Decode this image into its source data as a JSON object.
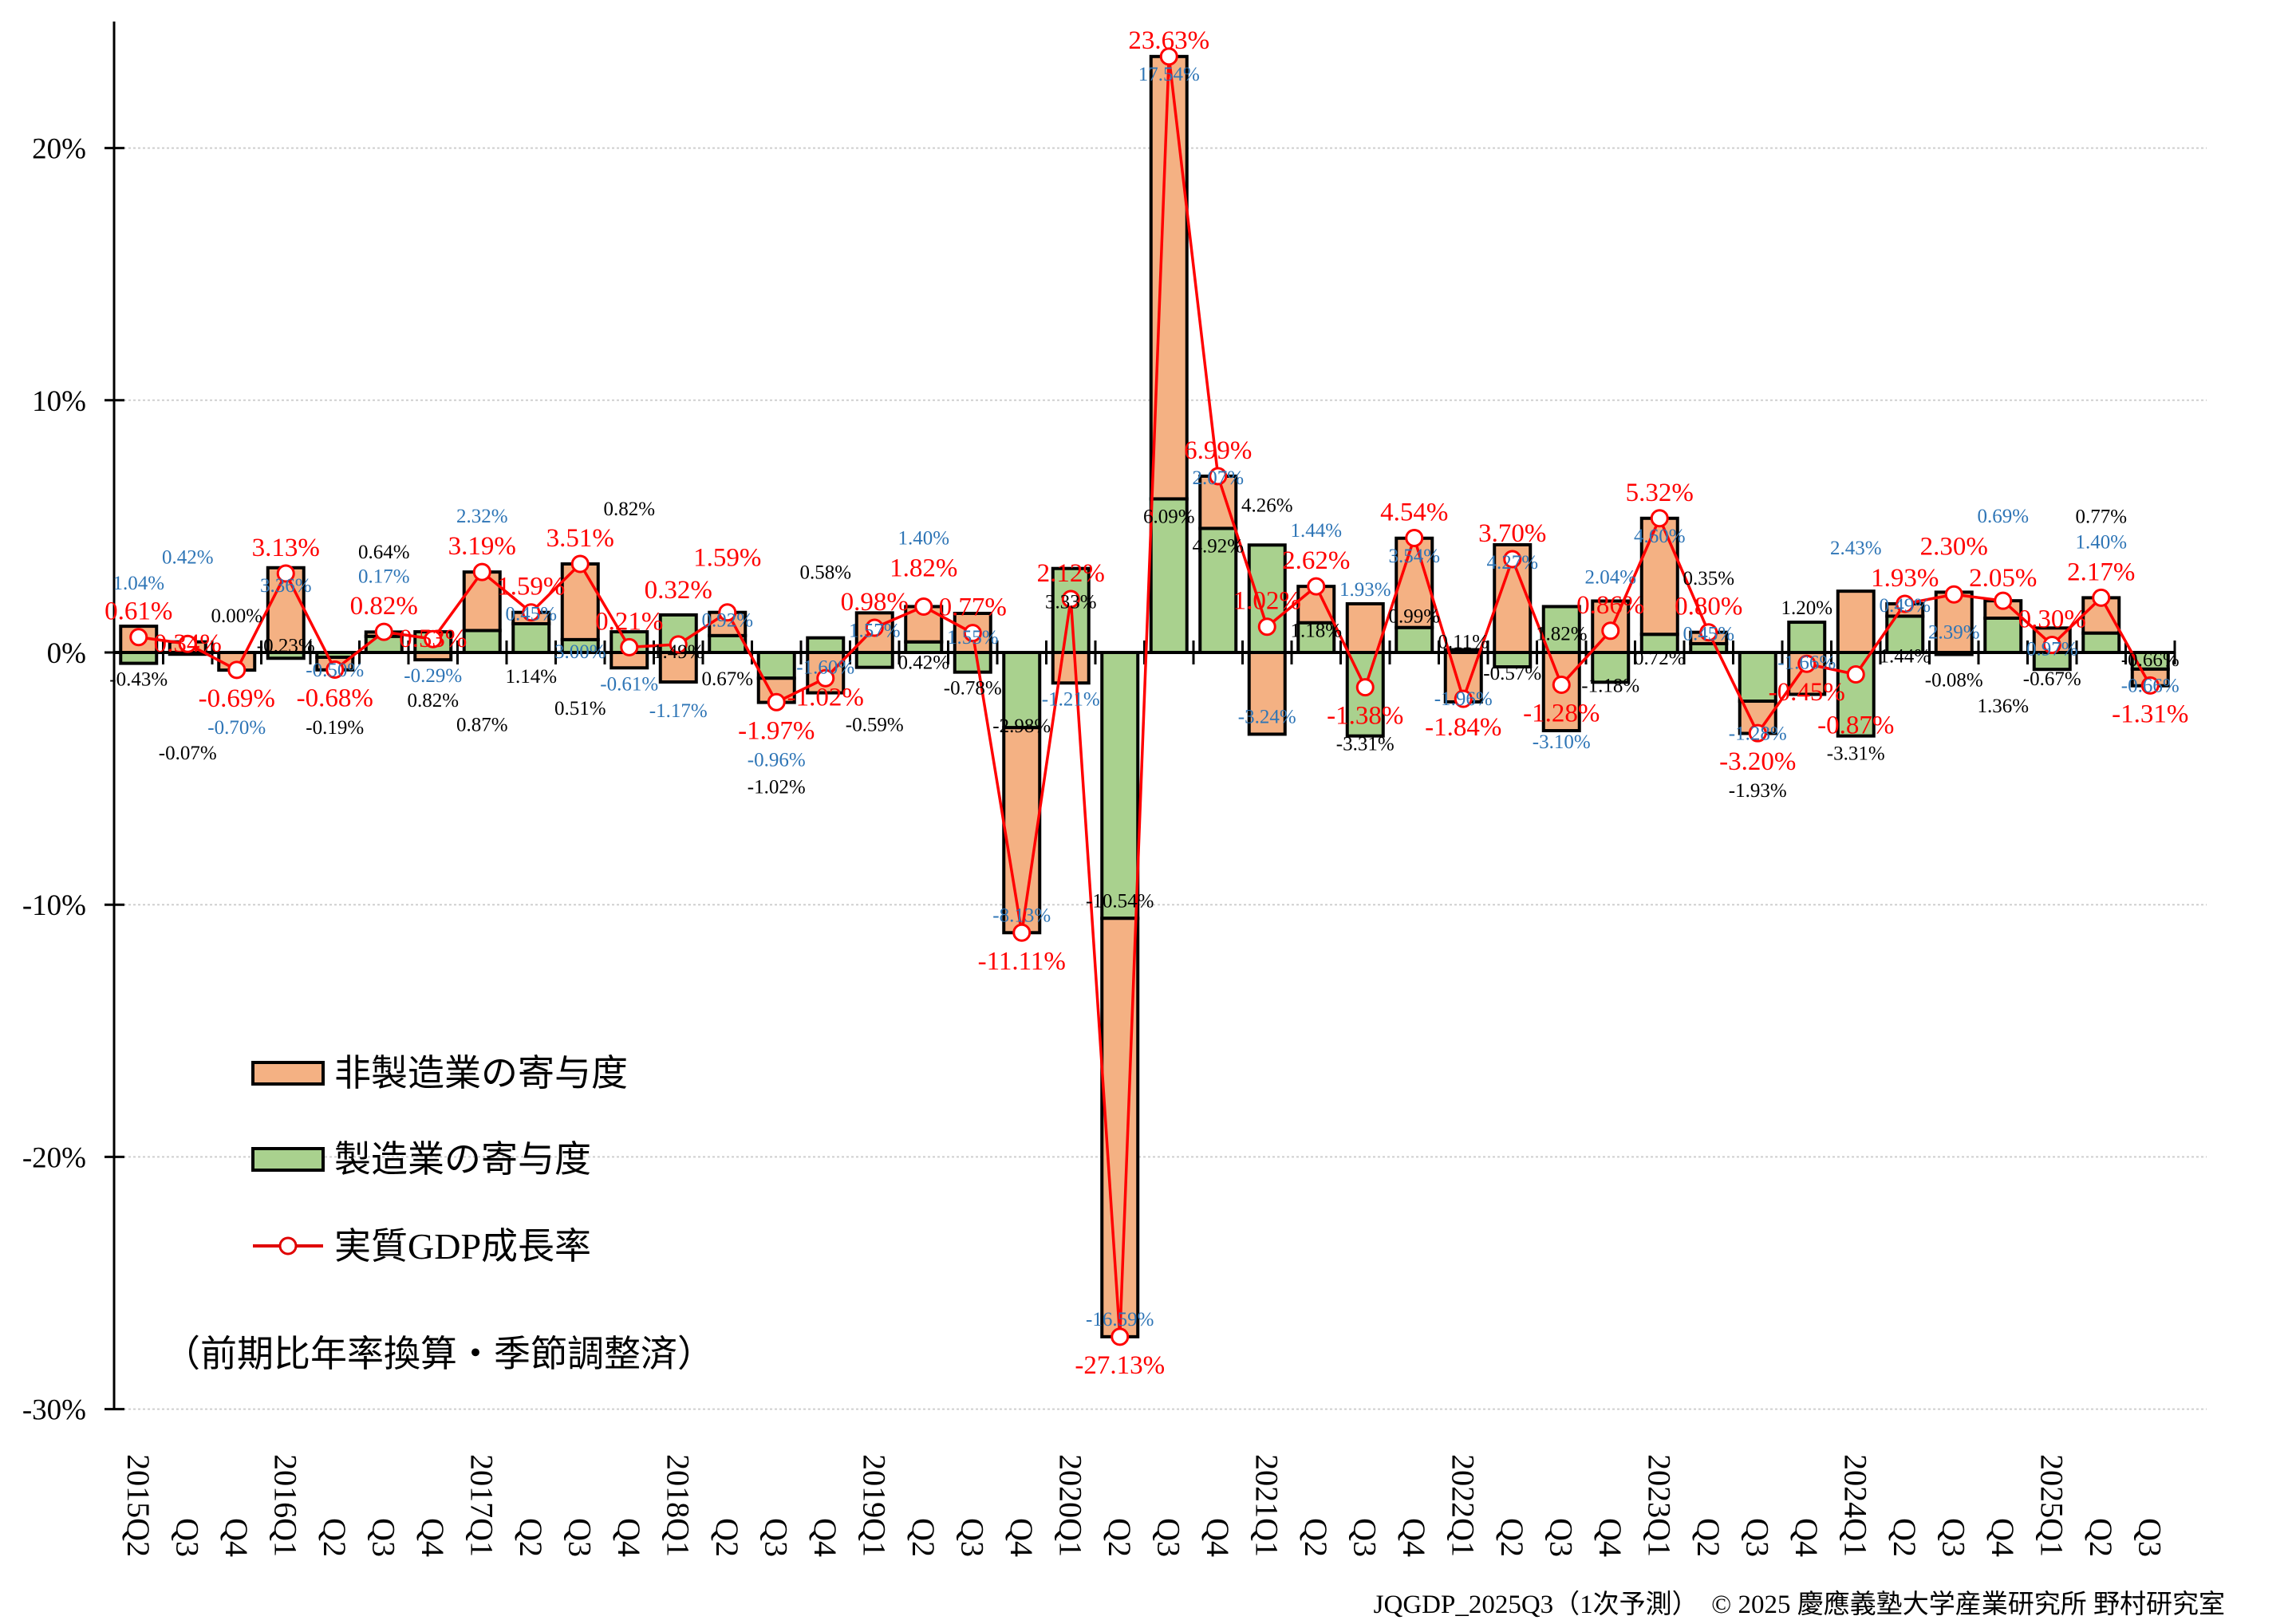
{
  "chart_data": {
    "type": "bar",
    "subtype": "stacked bar with line overlay",
    "categories": [
      "2015Q2",
      "Q3",
      "Q4",
      "2016Q1",
      "Q2",
      "Q3",
      "Q4",
      "2017Q1",
      "Q2",
      "Q3",
      "Q4",
      "2018Q1",
      "Q2",
      "Q3",
      "Q4",
      "2019Q1",
      "Q2",
      "Q3",
      "Q4",
      "2020Q1",
      "Q2",
      "Q3",
      "Q4",
      "2021Q1",
      "Q2",
      "Q3",
      "Q4",
      "2022Q1",
      "Q2",
      "Q3",
      "Q4",
      "2023Q1",
      "Q2",
      "Q3",
      "Q4",
      "2024Q1",
      "Q2",
      "Q3",
      "Q4",
      "2025Q1",
      "Q2",
      "Q3"
    ],
    "series": [
      {
        "name": "製造業の寄与度",
        "kind": "bar",
        "color": "#A9D18E",
        "label_color": "#000000",
        "values": [
          -0.43,
          -0.07,
          0.0,
          -0.23,
          -0.19,
          0.64,
          0.82,
          0.87,
          1.14,
          0.51,
          0.82,
          1.49,
          0.67,
          -1.02,
          0.58,
          -0.59,
          0.42,
          -0.78,
          -2.98,
          3.33,
          -10.54,
          6.09,
          4.92,
          4.26,
          1.18,
          -3.31,
          0.99,
          0.11,
          -0.57,
          1.82,
          -1.18,
          0.72,
          0.35,
          -1.93,
          1.2,
          -3.31,
          1.44,
          -0.08,
          1.36,
          -0.67,
          0.77,
          -0.66
        ]
      },
      {
        "name": "非製造業の寄与度",
        "kind": "bar",
        "color": "#F4B183",
        "label_color": "#2E75B6",
        "values": [
          1.04,
          0.42,
          -0.7,
          3.36,
          -0.5,
          0.17,
          -0.29,
          2.32,
          0.45,
          3.0,
          -0.61,
          -1.17,
          0.92,
          -0.96,
          -1.6,
          1.57,
          1.4,
          1.55,
          -8.13,
          -1.21,
          -16.59,
          17.54,
          2.07,
          -3.24,
          1.44,
          1.93,
          3.54,
          -1.96,
          4.27,
          -3.1,
          2.04,
          4.6,
          0.45,
          -1.28,
          -1.66,
          2.43,
          0.49,
          2.39,
          0.69,
          0.97,
          1.4,
          -0.66
        ]
      },
      {
        "name": "実質GDP成長率",
        "kind": "line",
        "color": "#FF0000",
        "marker": "open-circle",
        "values": [
          0.61,
          0.34,
          -0.69,
          3.13,
          -0.68,
          0.82,
          0.53,
          3.19,
          1.59,
          3.51,
          0.21,
          0.32,
          1.59,
          -1.97,
          -1.02,
          0.98,
          1.82,
          0.77,
          -11.11,
          2.12,
          -27.13,
          23.63,
          6.99,
          1.02,
          2.62,
          -1.38,
          4.54,
          -1.84,
          3.7,
          -1.28,
          0.86,
          5.32,
          0.8,
          -3.2,
          -0.45,
          -0.87,
          1.93,
          2.3,
          2.05,
          0.3,
          2.17,
          -1.31
        ]
      }
    ],
    "data_label_suffix": "%",
    "y_ticks": [
      {
        "value": 20,
        "label": "20%"
      },
      {
        "value": 10,
        "label": "10%"
      },
      {
        "value": 0,
        "label": "0%"
      },
      {
        "value": -10,
        "label": "-10%"
      },
      {
        "value": -20,
        "label": "-20%"
      },
      {
        "value": -30,
        "label": "-30%"
      }
    ],
    "ylim": [
      -30,
      25
    ],
    "grid": "horizontal dotted",
    "legend_placement": "lower-left",
    "legend": {
      "items": [
        "非製造業の寄与度",
        "製造業の寄与度",
        "実質GDP成長率"
      ]
    },
    "note": "（前期比年率換算・季節調整済）",
    "title": "",
    "xlabel": "",
    "ylabel": ""
  },
  "footer": {
    "source": "JQGDP_2025Q3（1次予測）　© 2025 慶應義塾大学産業研究所 野村研究室"
  }
}
